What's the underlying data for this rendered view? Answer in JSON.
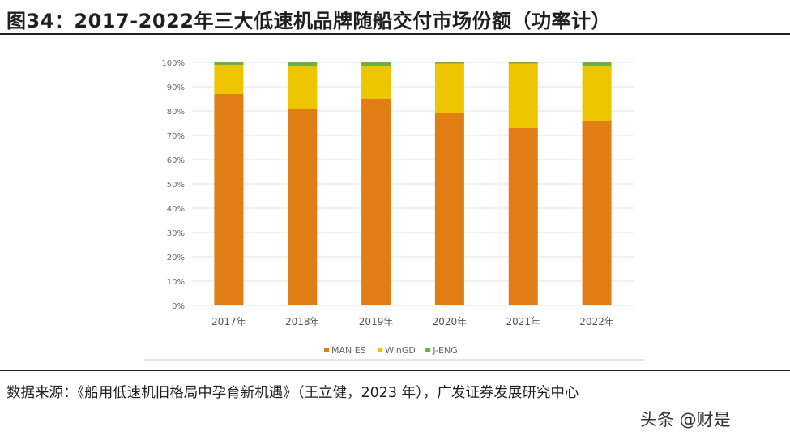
{
  "header": {
    "title": "图34：2017-2022年三大低速机品牌随船交付市场份额（功率计）"
  },
  "footer": {
    "source": "数据来源：《船用低速机旧格局中孕育新机遇》（王立健，2023 年），广发证券发展研究中心",
    "watermark": "头条 @财是"
  },
  "colors": {
    "MAN ES": "#E07E15",
    "WinGD": "#EEC600",
    "J-ENG": "#6FB03C"
  },
  "chart_data": {
    "type": "bar",
    "stacked": true,
    "categories": [
      "2017年",
      "2018年",
      "2019年",
      "2020年",
      "2021年",
      "2022年"
    ],
    "series": [
      {
        "name": "MAN ES",
        "values": [
          87,
          81,
          85,
          79,
          73,
          76
        ]
      },
      {
        "name": "WinGD",
        "values": [
          12,
          17.5,
          13.5,
          20.5,
          26.5,
          22.5
        ]
      },
      {
        "name": "J-ENG",
        "values": [
          1,
          1.5,
          1.5,
          0.5,
          0.5,
          1.5
        ]
      }
    ],
    "yticks": [
      "0%",
      "10%",
      "20%",
      "30%",
      "40%",
      "50%",
      "60%",
      "70%",
      "80%",
      "90%",
      "100%"
    ],
    "ylim": [
      0,
      100
    ],
    "grid": true,
    "legend": "bottom"
  }
}
